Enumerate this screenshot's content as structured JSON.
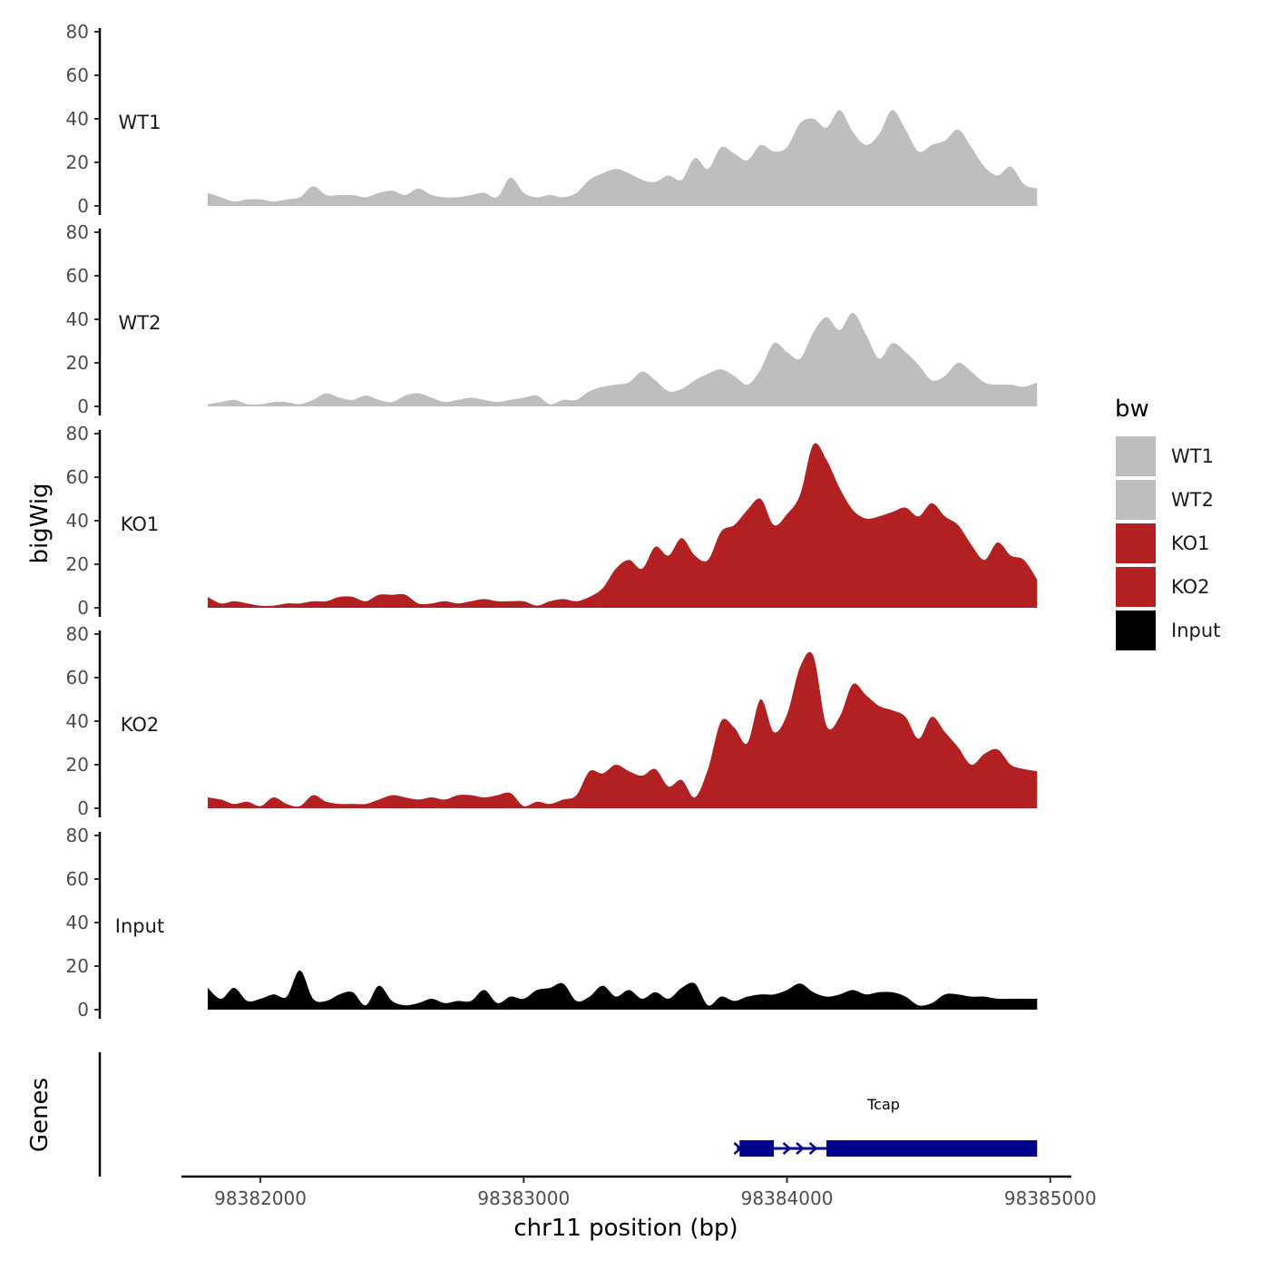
{
  "chart_data": {
    "type": "area",
    "chromosome": "chr11",
    "xlabel": "chr11 position (bp)",
    "ylabel": "bigWig",
    "genes_label": "Genes",
    "x_ticks": [
      98382000,
      98383000,
      98384000,
      98385000
    ],
    "x_tick_labels": [
      "98382000",
      "98383000",
      "98384000",
      "98385000"
    ],
    "xlim": [
      98381700,
      98385080
    ],
    "ylim": [
      0,
      80
    ],
    "y_ticks": [
      0,
      20,
      40,
      60,
      80
    ],
    "y_tick_labels": [
      "0",
      "20",
      "40",
      "60",
      "80"
    ],
    "legend": {
      "title": "bw",
      "position": "right",
      "entries": [
        {
          "label": "WT1",
          "color": "#bebebe"
        },
        {
          "label": "WT2",
          "color": "#bebebe"
        },
        {
          "label": "KO1",
          "color": "#b22022"
        },
        {
          "label": "KO2",
          "color": "#b22022"
        },
        {
          "label": "Input",
          "color": "#000000"
        }
      ]
    },
    "series": [
      {
        "name": "WT1",
        "color": "#bebebe",
        "x": [
          98381800,
          98381850,
          98381900,
          98381950,
          98382000,
          98382050,
          98382100,
          98382150,
          98382200,
          98382250,
          98382300,
          98382350,
          98382400,
          98382450,
          98382500,
          98382550,
          98382600,
          98382650,
          98382700,
          98382750,
          98382800,
          98382850,
          98382900,
          98382950,
          98383000,
          98383050,
          98383100,
          98383150,
          98383200,
          98383250,
          98383300,
          98383350,
          98383400,
          98383450,
          98383500,
          98383550,
          98383600,
          98383650,
          98383700,
          98383750,
          98383800,
          98383850,
          98383900,
          98383950,
          98384000,
          98384050,
          98384100,
          98384150,
          98384200,
          98384250,
          98384300,
          98384350,
          98384400,
          98384450,
          98384500,
          98384550,
          98384600,
          98384650,
          98384700,
          98384750,
          98384800,
          98384850,
          98384900,
          98384950
        ],
        "values": [
          6,
          4,
          2,
          3,
          3,
          2,
          3,
          4,
          9,
          5,
          5,
          5,
          4,
          6,
          7,
          5,
          8,
          5,
          4,
          4,
          5,
          6,
          4,
          13,
          6,
          4,
          5,
          4,
          6,
          12,
          15,
          17,
          15,
          12,
          11,
          14,
          12,
          22,
          17,
          27,
          24,
          21,
          28,
          25,
          27,
          38,
          40,
          36,
          44,
          34,
          28,
          33,
          44,
          35,
          25,
          28,
          30,
          35,
          27,
          18,
          14,
          18,
          10,
          8
        ]
      },
      {
        "name": "WT2",
        "color": "#bebebe",
        "x": [
          98381800,
          98381850,
          98381900,
          98381950,
          98382000,
          98382050,
          98382100,
          98382150,
          98382200,
          98382250,
          98382300,
          98382350,
          98382400,
          98382450,
          98382500,
          98382550,
          98382600,
          98382650,
          98382700,
          98382750,
          98382800,
          98382850,
          98382900,
          98382950,
          98383000,
          98383050,
          98383100,
          98383150,
          98383200,
          98383250,
          98383300,
          98383350,
          98383400,
          98383450,
          98383500,
          98383550,
          98383600,
          98383650,
          98383700,
          98383750,
          98383800,
          98383850,
          98383900,
          98383950,
          98384000,
          98384050,
          98384100,
          98384150,
          98384200,
          98384250,
          98384300,
          98384350,
          98384400,
          98384450,
          98384500,
          98384550,
          98384600,
          98384650,
          98384700,
          98384750,
          98384800,
          98384850,
          98384900,
          98384950
        ],
        "values": [
          1,
          2,
          3,
          1,
          1,
          2,
          2,
          1,
          3,
          6,
          4,
          3,
          5,
          3,
          2,
          5,
          6,
          4,
          2,
          3,
          4,
          3,
          2,
          3,
          4,
          5,
          1,
          3,
          3,
          7,
          9,
          10,
          11,
          16,
          12,
          7,
          8,
          12,
          15,
          17,
          14,
          10,
          17,
          29,
          25,
          22,
          34,
          41,
          35,
          43,
          33,
          22,
          29,
          25,
          19,
          12,
          14,
          20,
          16,
          11,
          10,
          10,
          9,
          11
        ]
      },
      {
        "name": "KO1",
        "color": "#b22022",
        "x": [
          98381800,
          98381850,
          98381900,
          98381950,
          98382000,
          98382050,
          98382100,
          98382150,
          98382200,
          98382250,
          98382300,
          98382350,
          98382400,
          98382450,
          98382500,
          98382550,
          98382600,
          98382650,
          98382700,
          98382750,
          98382800,
          98382850,
          98382900,
          98382950,
          98383000,
          98383050,
          98383100,
          98383150,
          98383200,
          98383250,
          98383300,
          98383350,
          98383400,
          98383450,
          98383500,
          98383550,
          98383600,
          98383650,
          98383700,
          98383750,
          98383800,
          98383850,
          98383900,
          98383950,
          98384000,
          98384050,
          98384100,
          98384150,
          98384200,
          98384250,
          98384300,
          98384350,
          98384400,
          98384450,
          98384500,
          98384550,
          98384600,
          98384650,
          98384700,
          98384750,
          98384800,
          98384850,
          98384900,
          98384950
        ],
        "values": [
          5,
          2,
          3,
          2,
          1,
          1,
          2,
          2,
          3,
          3,
          5,
          5,
          3,
          6,
          6,
          6,
          2,
          2,
          3,
          2,
          3,
          4,
          3,
          3,
          3,
          1,
          3,
          4,
          3,
          5,
          9,
          18,
          22,
          18,
          28,
          24,
          32,
          24,
          22,
          35,
          38,
          45,
          50,
          38,
          43,
          52,
          75,
          68,
          55,
          45,
          41,
          42,
          44,
          46,
          42,
          48,
          42,
          38,
          29,
          22,
          30,
          24,
          22,
          13
        ]
      },
      {
        "name": "KO2",
        "color": "#b22022",
        "x": [
          98381800,
          98381850,
          98381900,
          98381950,
          98382000,
          98382050,
          98382100,
          98382150,
          98382200,
          98382250,
          98382300,
          98382350,
          98382400,
          98382450,
          98382500,
          98382550,
          98382600,
          98382650,
          98382700,
          98382750,
          98382800,
          98382850,
          98382900,
          98382950,
          98383000,
          98383050,
          98383100,
          98383150,
          98383200,
          98383250,
          98383300,
          98383350,
          98383400,
          98383450,
          98383500,
          98383550,
          98383600,
          98383650,
          98383700,
          98383750,
          98383800,
          98383850,
          98383900,
          98383950,
          98384000,
          98384050,
          98384100,
          98384150,
          98384200,
          98384250,
          98384300,
          98384350,
          98384400,
          98384450,
          98384500,
          98384550,
          98384600,
          98384650,
          98384700,
          98384750,
          98384800,
          98384850,
          98384900,
          98384950
        ],
        "values": [
          5,
          4,
          2,
          3,
          1,
          5,
          2,
          1,
          6,
          3,
          2,
          2,
          2,
          4,
          6,
          5,
          4,
          5,
          4,
          6,
          6,
          5,
          6,
          7,
          1,
          3,
          2,
          4,
          6,
          17,
          16,
          20,
          17,
          15,
          18,
          10,
          13,
          5,
          18,
          40,
          37,
          30,
          50,
          35,
          43,
          65,
          70,
          38,
          42,
          57,
          52,
          47,
          45,
          42,
          32,
          42,
          35,
          28,
          20,
          25,
          27,
          20,
          18,
          17
        ]
      },
      {
        "name": "Input",
        "color": "#000000",
        "x": [
          98381800,
          98381850,
          98381900,
          98381950,
          98382000,
          98382050,
          98382100,
          98382150,
          98382200,
          98382250,
          98382300,
          98382350,
          98382400,
          98382450,
          98382500,
          98382550,
          98382600,
          98382650,
          98382700,
          98382750,
          98382800,
          98382850,
          98382900,
          98382950,
          98383000,
          98383050,
          98383100,
          98383150,
          98383200,
          98383250,
          98383300,
          98383350,
          98383400,
          98383450,
          98383500,
          98383550,
          98383600,
          98383650,
          98383700,
          98383750,
          98383800,
          98383850,
          98383900,
          98383950,
          98384000,
          98384050,
          98384100,
          98384150,
          98384200,
          98384250,
          98384300,
          98384350,
          98384400,
          98384450,
          98384500,
          98384550,
          98384600,
          98384650,
          98384700,
          98384750,
          98384800,
          98384850,
          98384900,
          98384950
        ],
        "values": [
          10,
          5,
          10,
          4,
          5,
          7,
          6,
          18,
          5,
          4,
          7,
          8,
          2,
          11,
          4,
          2,
          3,
          5,
          3,
          4,
          4,
          9,
          3,
          6,
          5,
          9,
          10,
          12,
          4,
          6,
          11,
          6,
          9,
          5,
          8,
          5,
          10,
          12,
          2,
          6,
          4,
          6,
          7,
          7,
          9,
          12,
          8,
          6,
          7,
          9,
          7,
          8,
          8,
          6,
          2,
          3,
          7,
          7,
          6,
          6,
          5,
          5,
          5,
          5
        ]
      }
    ],
    "genes": [
      {
        "name": "Tcap",
        "strand": "+",
        "start": 98383810,
        "end": 98384950,
        "exons": [
          [
            98383820,
            98383950
          ],
          [
            98384150,
            98384950
          ]
        ]
      }
    ]
  }
}
